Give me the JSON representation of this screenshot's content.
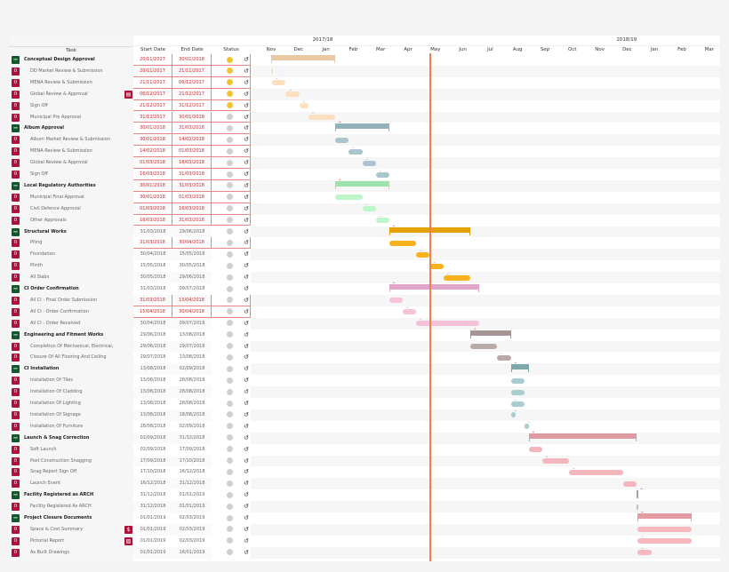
{
  "header": {
    "task": "Task",
    "start": "Start Date",
    "end": "End Date",
    "status": "Status",
    "years": [
      "2017/18",
      "2018/19"
    ],
    "months": [
      "Nov",
      "Dec",
      "Jan",
      "Feb",
      "Mar",
      "Apr",
      "May",
      "Jun",
      "Jul",
      "Aug",
      "Sep",
      "Oct",
      "Nov",
      "Dec",
      "Jan",
      "Feb",
      "Mar"
    ]
  },
  "today": "15/05/2018",
  "colors": {
    "overdue": "#d2232a",
    "status_yellow": "#f2c530",
    "status_gray": "#d0d0d0",
    "today_line": "#e9834a",
    "badge_red": "#b0113a",
    "badge_green": "#0f5a2b"
  },
  "groups": [
    {
      "group": "#e8c9a2",
      "task": "#fde0bf"
    },
    {
      "group": "#92b3bc",
      "task": "#a9c5cd"
    },
    {
      "group": "#9fe3ac",
      "task": "#bff5c9"
    },
    {
      "group": "#e3a104",
      "task": "#f8b21e"
    },
    {
      "group": "#e0a6c9",
      "task": "#f7c1da"
    },
    {
      "group": "#a59595",
      "task": "#b9a9a9"
    },
    {
      "group": "#7fa8ad",
      "task": "#a9cdd1"
    },
    {
      "group": "#dc9aa2",
      "task": "#f4b6bd"
    },
    {
      "group": "#a7a0a0",
      "task": "#c0c0c0"
    },
    {
      "group": "#e49ba2",
      "task": "#f9b8be"
    }
  ],
  "rows": [
    {
      "name": "Conceptual Design Approval",
      "group": true,
      "g": 0,
      "start": "20/11/2017",
      "end": "30/01/2018",
      "overdue": true,
      "status": "yellow",
      "badge": "−"
    },
    {
      "name": "DD Market Review & Submission",
      "g": 0,
      "start": "20/11/2017",
      "end": "21/11/2017",
      "overdue": true,
      "status": "yellow",
      "badge": "0"
    },
    {
      "name": "MENA Review & Submission",
      "g": 0,
      "start": "21/11/2017",
      "end": "06/12/2017",
      "overdue": true,
      "status": "yellow",
      "badge": "0",
      "mk": "gray"
    },
    {
      "name": "Global Review & Approval",
      "g": 0,
      "start": "06/12/2017",
      "end": "21/12/2017",
      "overdue": true,
      "status": "yellow",
      "badge": "0",
      "mk": "gray",
      "icon": "▤",
      "iconName": "document-icon"
    },
    {
      "name": "Sign Off",
      "g": 0,
      "start": "21/12/2017",
      "end": "31/12/2017",
      "overdue": true,
      "status": "yellow",
      "badge": "0",
      "mk": "gray"
    },
    {
      "name": "Municipal Pre Approval",
      "g": 0,
      "start": "31/12/2017",
      "end": "30/01/2018",
      "overdue": true,
      "status": "gray",
      "badge": "0",
      "mk": "gray"
    },
    {
      "name": "Album Approval",
      "group": true,
      "g": 1,
      "start": "30/01/2018",
      "end": "31/03/2018",
      "overdue": true,
      "status": "gray",
      "badge": "−",
      "mk": "red"
    },
    {
      "name": "Album Market Review & Submission",
      "g": 1,
      "start": "30/01/2018",
      "end": "14/02/2018",
      "overdue": true,
      "status": "gray",
      "badge": "0"
    },
    {
      "name": "MENA Review & Submission",
      "g": 1,
      "start": "14/02/2018",
      "end": "01/03/2018",
      "overdue": true,
      "status": "gray",
      "badge": "0",
      "mk": "gray"
    },
    {
      "name": "Global Review & Approval",
      "g": 1,
      "start": "01/03/2018",
      "end": "16/03/2018",
      "overdue": true,
      "status": "gray",
      "badge": "0",
      "mk": "gray"
    },
    {
      "name": "Sign Off",
      "g": 1,
      "start": "16/03/2018",
      "end": "31/03/2018",
      "overdue": true,
      "status": "gray",
      "badge": "0",
      "mk": "gray"
    },
    {
      "name": "Local Regulatory Authorities",
      "group": true,
      "g": 2,
      "start": "30/01/2018",
      "end": "31/03/2018",
      "overdue": true,
      "status": "gray",
      "badge": "−",
      "mk": "red"
    },
    {
      "name": "Municipal Final Approval",
      "g": 2,
      "start": "30/01/2018",
      "end": "01/03/2018",
      "overdue": true,
      "status": "gray",
      "badge": "0"
    },
    {
      "name": "Civil Defence Approval",
      "g": 2,
      "start": "01/03/2018",
      "end": "16/03/2018",
      "overdue": true,
      "status": "gray",
      "badge": "0",
      "mk": "gray"
    },
    {
      "name": "Other Approvals",
      "g": 2,
      "start": "16/03/2018",
      "end": "31/03/2018",
      "overdue": true,
      "status": "gray",
      "badge": "0",
      "mk": "gray"
    },
    {
      "name": "Structural Works",
      "group": true,
      "g": 3,
      "start": "31/03/2018",
      "end": "29/06/2018",
      "status": "gray",
      "badge": "−",
      "mk": "red"
    },
    {
      "name": "Piling",
      "g": 3,
      "start": "31/03/2018",
      "end": "30/04/2018",
      "overdue": true,
      "status": "gray",
      "badge": "0"
    },
    {
      "name": "Foundation",
      "g": 3,
      "start": "30/04/2018",
      "end": "15/05/2018",
      "status": "gray",
      "badge": "0",
      "mk": "gray"
    },
    {
      "name": "Plinth",
      "g": 3,
      "start": "15/05/2018",
      "end": "30/05/2018",
      "status": "gray",
      "badge": "0",
      "mk": "gray"
    },
    {
      "name": "All Slabs",
      "g": 3,
      "start": "30/05/2018",
      "end": "29/06/2018",
      "status": "gray",
      "badge": "0",
      "mk": "gray"
    },
    {
      "name": "CI Order Confirmation",
      "group": true,
      "g": 4,
      "start": "31/03/2018",
      "end": "09/07/2018",
      "status": "gray",
      "badge": "−",
      "mk": "red"
    },
    {
      "name": "All CI - Final Order Submission",
      "g": 4,
      "start": "31/03/2018",
      "end": "15/04/2018",
      "overdue": true,
      "status": "gray",
      "badge": "0"
    },
    {
      "name": "All CI - Order Confirmation",
      "g": 4,
      "start": "15/04/2018",
      "end": "30/04/2018",
      "overdue": true,
      "status": "gray",
      "badge": "0",
      "mk": "gray"
    },
    {
      "name": "All CI - Order Received",
      "g": 4,
      "start": "30/04/2018",
      "end": "09/07/2018",
      "status": "gray",
      "badge": "0",
      "mk": "gray"
    },
    {
      "name": "Engineering and Fitment Works",
      "group": true,
      "g": 5,
      "start": "29/06/2018",
      "end": "13/08/2018",
      "status": "gray",
      "badge": "−",
      "mk": "red"
    },
    {
      "name": "Completion Of Mechanical, Electrical,",
      "g": 5,
      "start": "29/06/2018",
      "end": "29/07/2018",
      "status": "gray",
      "badge": "0"
    },
    {
      "name": "Closure Of All Flooring And Ceiling",
      "g": 5,
      "start": "29/07/2018",
      "end": "13/08/2018",
      "status": "gray",
      "badge": "0",
      "mk": "gray"
    },
    {
      "name": "CI Installation",
      "group": true,
      "g": 6,
      "start": "13/08/2018",
      "end": "02/09/2018",
      "status": "gray",
      "badge": "−",
      "mk": "red"
    },
    {
      "name": "Installation Of Tiles",
      "g": 6,
      "start": "13/08/2018",
      "end": "28/08/2018",
      "status": "gray",
      "badge": "0"
    },
    {
      "name": "Installation Of Cladding",
      "g": 6,
      "start": "13/08/2018",
      "end": "28/08/2018",
      "status": "gray",
      "badge": "0"
    },
    {
      "name": "Installation Of Lighting",
      "g": 6,
      "start": "13/08/2018",
      "end": "28/08/2018",
      "status": "gray",
      "badge": "0",
      "mk": "gray"
    },
    {
      "name": "Installation Of Signage",
      "g": 6,
      "start": "13/08/2018",
      "end": "18/08/2018",
      "status": "gray",
      "badge": "0",
      "mk": "gray"
    },
    {
      "name": "Installation Of Furniture",
      "g": 6,
      "start": "28/08/2018",
      "end": "02/09/2018",
      "status": "gray",
      "badge": "0",
      "mk": "gray"
    },
    {
      "name": "Launch & Snag Correction",
      "group": true,
      "g": 7,
      "start": "02/09/2018",
      "end": "31/12/2018",
      "status": "gray",
      "badge": "−",
      "mk": "red"
    },
    {
      "name": "Soft Launch",
      "g": 7,
      "start": "02/09/2018",
      "end": "17/09/2018",
      "status": "gray",
      "badge": "0"
    },
    {
      "name": "Post Construction Snagging",
      "g": 7,
      "start": "17/09/2018",
      "end": "17/10/2018",
      "status": "gray",
      "badge": "0",
      "mk": "gray"
    },
    {
      "name": "Snag Report Sign Off",
      "g": 7,
      "start": "17/10/2018",
      "end": "16/12/2018",
      "status": "gray",
      "badge": "0",
      "mk": "gray"
    },
    {
      "name": "Launch Event",
      "g": 7,
      "start": "16/12/2018",
      "end": "31/12/2018",
      "status": "gray",
      "badge": "0"
    },
    {
      "name": "Facility Registered as ARCH",
      "group": true,
      "g": 8,
      "start": "31/12/2018",
      "end": "01/01/2019",
      "status": "gray",
      "badge": "−",
      "mk": "red"
    },
    {
      "name": "Facility Registered As ARCH",
      "g": 8,
      "start": "31/12/2018",
      "end": "01/01/2019",
      "status": "gray",
      "badge": "0"
    },
    {
      "name": "Project Closure Documents",
      "group": true,
      "g": 9,
      "start": "01/01/2019",
      "end": "02/03/2019",
      "status": "gray",
      "badge": "−",
      "mk": "red"
    },
    {
      "name": "Space & Cost Summary",
      "g": 9,
      "start": "01/01/2019",
      "end": "02/03/2019",
      "status": "gray",
      "badge": "0",
      "icon": "$",
      "iconName": "dollar-icon"
    },
    {
      "name": "Pictorial Report",
      "g": 9,
      "start": "01/01/2019",
      "end": "02/03/2019",
      "status": "gray",
      "badge": "0",
      "mk": "gray",
      "icon": "▨",
      "iconName": "image-icon"
    },
    {
      "name": "As Built Drawings",
      "g": 9,
      "start": "01/01/2019",
      "end": "16/01/2019",
      "status": "gray",
      "badge": "0",
      "mk": "gray"
    }
  ]
}
